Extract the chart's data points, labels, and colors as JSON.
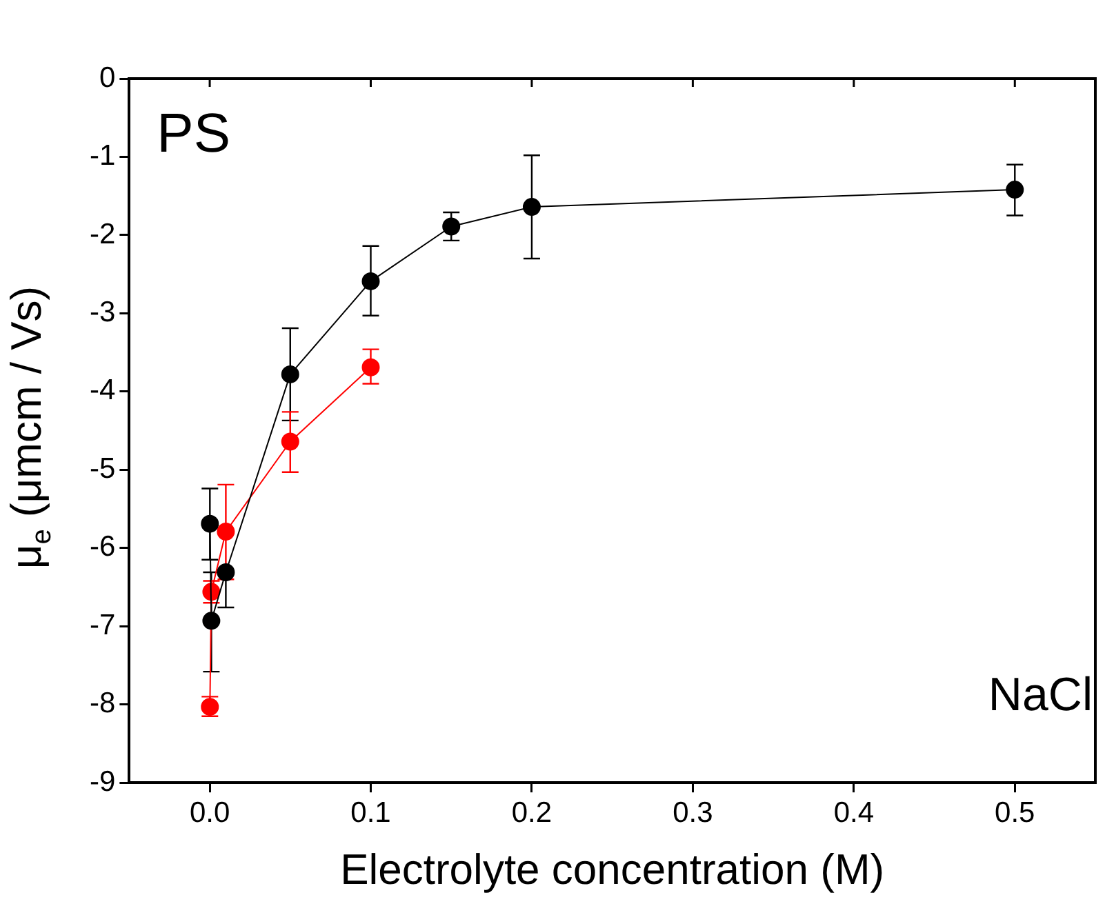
{
  "chart_data": {
    "type": "line",
    "xlabel": "Electrolyte concentration (M)",
    "ylabel": "μ$_{e}$ (μmcm / Vs)",
    "xlim": [
      -0.05,
      0.55
    ],
    "xticks": [
      {
        "value": 0,
        "label": "0.0"
      },
      0.1,
      0.2,
      0.3,
      0.4,
      0.5
    ],
    "ylim": [
      -9,
      0
    ],
    "yticks": [
      -9,
      -8,
      -7,
      -6,
      -5,
      -4,
      -3,
      -2,
      -1,
      0
    ],
    "grid": false,
    "legend": false,
    "marker": "circle",
    "line_style": "solid",
    "annotations": [
      "PS",
      "NaCl"
    ],
    "series": [
      {
        "color": "#000000",
        "x": [
          0.0001,
          0.001,
          0.01,
          0.05,
          0.1,
          0.15,
          0.2,
          0.5
        ],
        "values": [
          -5.69,
          -6.93,
          -6.31,
          -3.78,
          -2.59,
          -1.89,
          -1.64,
          -1.42
        ],
        "errors": [
          [
            -6.15,
            -5.24
          ],
          [
            -7.58,
            -6.31
          ],
          [
            -6.76,
            -6.31
          ],
          [
            -4.37,
            -3.19
          ],
          [
            -3.03,
            -2.14
          ],
          [
            -2.07,
            -1.71
          ],
          [
            -2.3,
            -0.98
          ],
          [
            -1.75,
            -1.1
          ]
        ]
      },
      {
        "color": "#ff0000",
        "x": [
          0.0001,
          0.001,
          0.01,
          0.05,
          0.1
        ],
        "values": [
          -8.03,
          -6.56,
          -5.79,
          -4.64,
          -3.69
        ],
        "errors": [
          [
            -8.15,
            -7.9
          ],
          [
            -6.7,
            -6.42
          ],
          [
            -6.4,
            -5.19
          ],
          [
            -5.03,
            -4.26
          ],
          [
            -3.9,
            -3.46
          ]
        ]
      }
    ]
  }
}
